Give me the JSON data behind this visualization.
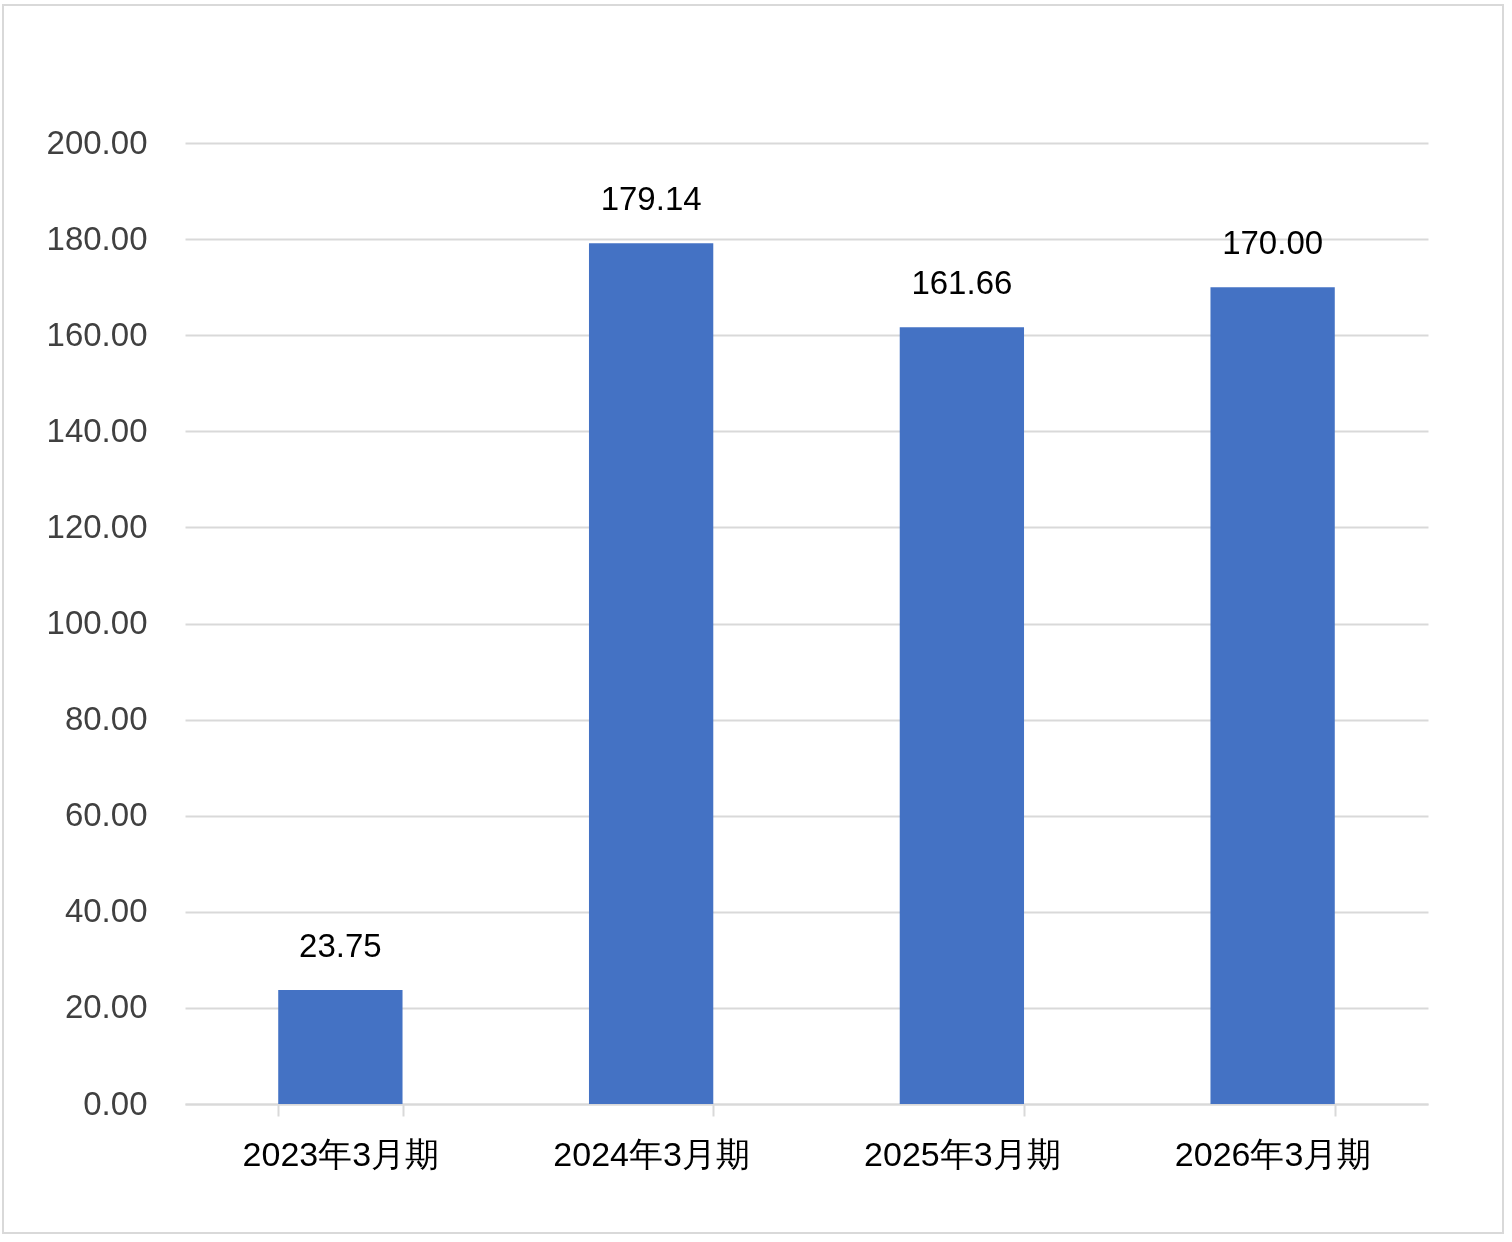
{
  "chart_data": {
    "type": "bar",
    "categories": [
      "2023年3月期",
      "2024年3月期",
      "2025年3月期",
      "2026年3月期"
    ],
    "values": [
      23.75,
      179.14,
      161.66,
      170.0
    ],
    "value_labels": [
      "23.75",
      "179.14",
      "161.66",
      "170.00"
    ],
    "color": "#4472c4",
    "ylim": [
      0,
      200
    ],
    "yticks": [
      {
        "value": 0,
        "label": "0.00"
      },
      {
        "value": 20,
        "label": "20.00"
      },
      {
        "value": 40,
        "label": "40.00"
      },
      {
        "value": 60,
        "label": "60.00"
      },
      {
        "value": 80,
        "label": "80.00"
      },
      {
        "value": 100,
        "label": "100.00"
      },
      {
        "value": 120,
        "label": "120.00"
      },
      {
        "value": 140,
        "label": "140.00"
      },
      {
        "value": 160,
        "label": "160.00"
      },
      {
        "value": 180,
        "label": "180.00"
      },
      {
        "value": 200,
        "label": "200.00"
      }
    ],
    "grid": "y"
  }
}
